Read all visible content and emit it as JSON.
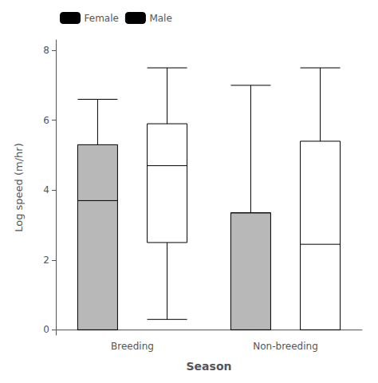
{
  "chart_data": {
    "type": "boxplot",
    "xlabel": "Season",
    "ylabel": "Log speed (m/hr)",
    "categories": [
      "Breeding",
      "Non-breeding"
    ],
    "series": [
      {
        "name": "Female",
        "color": "#b8b8b8",
        "values": [
          [
            0.0,
            0.0,
            3.7,
            5.3,
            6.6
          ],
          [
            0.0,
            0.0,
            3.35,
            3.35,
            7.0
          ]
        ]
      },
      {
        "name": "Male",
        "color": "#ffffff",
        "values": [
          [
            0.3,
            2.5,
            4.7,
            5.9,
            7.5
          ],
          [
            0.0,
            0.0,
            2.45,
            5.4,
            7.5
          ]
        ]
      }
    ],
    "ylim": [
      -0.15,
      8.3
    ],
    "yticks": [
      0,
      2,
      4,
      6,
      8
    ],
    "grid": false,
    "legend": "upper left"
  }
}
